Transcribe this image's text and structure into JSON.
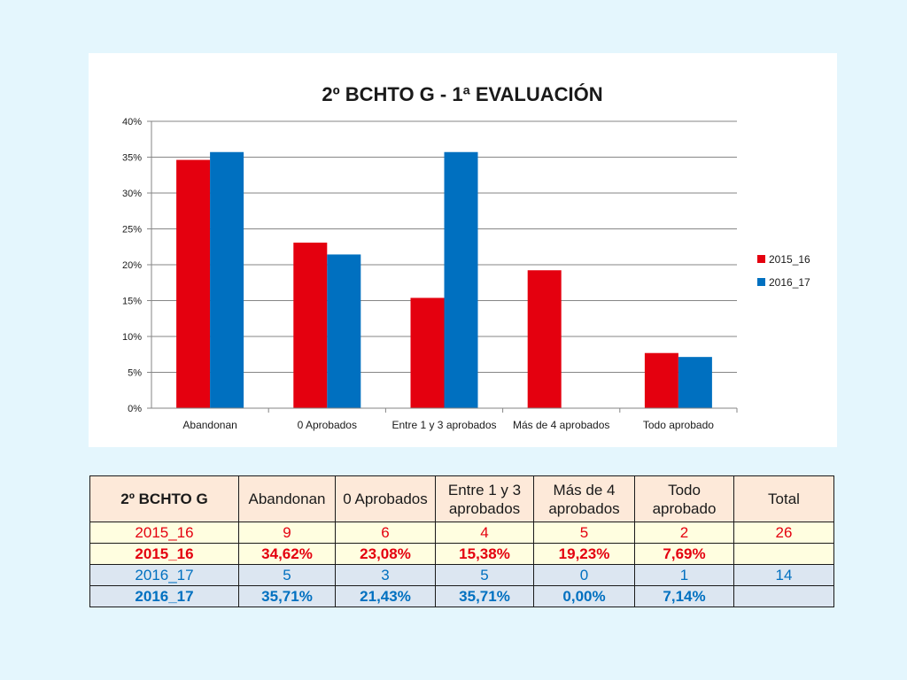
{
  "colors": {
    "series_2015_16": "#e4000f",
    "series_2016_17": "#0070c0"
  },
  "chart_data": {
    "type": "bar",
    "title": "2º BCHTO G - 1ª EVALUACIÓN",
    "categories": [
      "Abandonan",
      "0 Aprobados",
      "Entre 1 y 3 aprobados",
      "Más de 4 aprobados",
      "Todo aprobado"
    ],
    "series": [
      {
        "name": "2015_16",
        "color": "#e4000f",
        "values": [
          34.62,
          23.08,
          15.38,
          19.23,
          7.69
        ]
      },
      {
        "name": "2016_17",
        "color": "#0070c0",
        "values": [
          35.71,
          21.43,
          35.71,
          0.0,
          7.14
        ]
      }
    ],
    "ylim": [
      0,
      40
    ],
    "yticks": [
      "0%",
      "5%",
      "10%",
      "15%",
      "20%",
      "25%",
      "30%",
      "35%",
      "40%"
    ],
    "ytick_values": [
      0,
      5,
      10,
      15,
      20,
      25,
      30,
      35,
      40
    ],
    "grid": true,
    "legend": "right"
  },
  "table": {
    "headers": [
      "2º BCHTO G",
      "Abandonan",
      "0 Aprobados",
      "Entre 1 y 3 aprobados",
      "Más de 4 aprobados",
      "Todo aprobado",
      "Total"
    ],
    "rows": [
      [
        "2015_16",
        "9",
        "6",
        "4",
        "5",
        "2",
        "26"
      ],
      [
        "2015_16",
        "34,62%",
        "23,08%",
        "15,38%",
        "19,23%",
        "7,69%",
        ""
      ],
      [
        "2016_17",
        "5",
        "3",
        "5",
        "0",
        "1",
        "14"
      ],
      [
        "2016_17",
        "35,71%",
        "21,43%",
        "35,71%",
        "0,00%",
        "7,14%",
        ""
      ]
    ]
  }
}
